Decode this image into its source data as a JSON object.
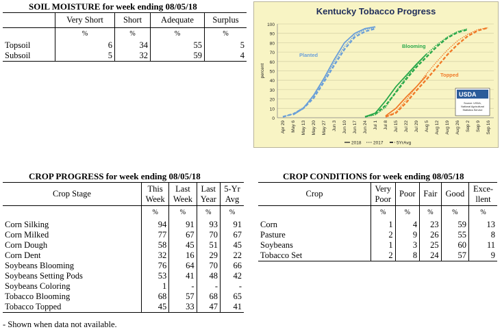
{
  "soil": {
    "title": "SOIL MOISTURE for week ending 08/05/18",
    "columns": [
      "Very Short",
      "Short",
      "Adequate",
      "Surplus"
    ],
    "pct": "%",
    "rows": [
      {
        "label": "Topsoil",
        "values": [
          "6",
          "34",
          "55",
          "5"
        ]
      },
      {
        "label": "Subsoil",
        "values": [
          "5",
          "32",
          "59",
          "4"
        ]
      }
    ]
  },
  "progress": {
    "title": "CROP PROGRESS for week ending 08/05/18",
    "stage_header": "Crop Stage",
    "col_headers": [
      [
        "This",
        "Week"
      ],
      [
        "Last",
        "Week"
      ],
      [
        "Last",
        "Year"
      ],
      [
        "5-Yr",
        "Avg"
      ]
    ],
    "pct": "%",
    "rows": [
      {
        "label": "Corn Silking",
        "values": [
          "94",
          "91",
          "93",
          "91"
        ]
      },
      {
        "label": "Corn Milked",
        "values": [
          "77",
          "67",
          "70",
          "67"
        ]
      },
      {
        "label": "Corn Dough",
        "values": [
          "58",
          "45",
          "51",
          "45"
        ]
      },
      {
        "label": "Corn Dent",
        "values": [
          "32",
          "16",
          "29",
          "22"
        ]
      },
      {
        "label": "Soybeans Blooming",
        "values": [
          "76",
          "64",
          "70",
          "66"
        ]
      },
      {
        "label": "Soybeans Setting Pods",
        "values": [
          "53",
          "41",
          "48",
          "42"
        ]
      },
      {
        "label": "Soybeans Coloring",
        "values": [
          "1",
          "-",
          "-",
          "-"
        ]
      },
      {
        "label": "Tobacco Blooming",
        "values": [
          "68",
          "57",
          "68",
          "65"
        ]
      },
      {
        "label": "Tobacco Topped",
        "values": [
          "45",
          "33",
          "47",
          "41"
        ]
      }
    ],
    "footnote": "- Shown when data not available."
  },
  "conditions": {
    "title": "CROP CONDITIONS for week ending 08/05/18",
    "crop_header": "Crop",
    "col_headers": [
      [
        "Very",
        "Poor"
      ],
      [
        "Poor"
      ],
      [
        "Fair"
      ],
      [
        "Good"
      ],
      [
        "Exce-",
        "llent"
      ]
    ],
    "pct": "%",
    "rows": [
      {
        "label": "Corn",
        "values": [
          "1",
          "4",
          "23",
          "59",
          "13"
        ]
      },
      {
        "label": "Pasture",
        "values": [
          "2",
          "9",
          "26",
          "55",
          "8"
        ]
      },
      {
        "label": "Soybeans",
        "values": [
          "1",
          "3",
          "25",
          "60",
          "11"
        ]
      },
      {
        "label": "Tobacco Set",
        "values": [
          "2",
          "8",
          "24",
          "57",
          "9"
        ]
      }
    ]
  },
  "chart_data": {
    "type": "line",
    "title": "Kentucky Tobacco Progress",
    "ylabel": "percent",
    "xlabel": "",
    "ylim": [
      0,
      100
    ],
    "yticks": [
      0,
      10,
      20,
      30,
      40,
      50,
      60,
      70,
      80,
      90,
      100
    ],
    "x_tick_labels": [
      "Apr 29",
      "May 6",
      "May 13",
      "May 20",
      "May 27",
      "Jun 3",
      "Jun 10",
      "Jun 17",
      "Jun 24",
      "Jul 1",
      "Jul 8",
      "Jul 15",
      "Jul 22",
      "Jul 29",
      "Aug 5",
      "Aug 12",
      "Aug 19",
      "Aug 26",
      "Sep 2",
      "Sep 9",
      "Sep 16"
    ],
    "grid": true,
    "legend_position": "bottom",
    "legend": [
      "2018",
      "2017",
      "5YrAvg"
    ],
    "annotations": [
      {
        "text": "Planted",
        "color": "#6a9fd8"
      },
      {
        "text": "Blooming",
        "color": "#2aa84a"
      },
      {
        "text": "Topped",
        "color": "#f07a28"
      }
    ],
    "logo": {
      "text": "USDA",
      "source": [
        "Source: USDA,",
        "National Agricultural",
        "Statistics Service"
      ]
    },
    "groups": [
      {
        "name": "Planted",
        "color": "#6a9fd8",
        "series": [
          {
            "style": "2018",
            "x": [
              "May 6",
              "May 13",
              "May 20",
              "May 27",
              "Jun 3",
              "Jun 10",
              "Jun 17",
              "Jun 24",
              "Jul 1"
            ],
            "values": [
              3,
              10,
              24,
              42,
              62,
              80,
              90,
              95,
              97
            ]
          },
          {
            "style": "2017",
            "x": [
              "Apr 29",
              "May 6",
              "May 13",
              "May 20",
              "May 27",
              "Jun 3",
              "Jun 10",
              "Jun 17",
              "Jun 24",
              "Jul 1"
            ],
            "values": [
              1,
              4,
              11,
              23,
              40,
              59,
              76,
              88,
              94,
              96
            ]
          },
          {
            "style": "5YrAvg",
            "x": [
              "Apr 29",
              "May 6",
              "May 13",
              "May 20",
              "May 27",
              "Jun 3",
              "Jun 10",
              "Jun 17",
              "Jun 24",
              "Jul 1"
            ],
            "values": [
              1,
              4,
              10,
              21,
              38,
              56,
              73,
              86,
              92,
              95
            ]
          }
        ]
      },
      {
        "name": "Blooming",
        "color": "#2aa84a",
        "series": [
          {
            "style": "2018",
            "x": [
              "Jun 24",
              "Jul 1",
              "Jul 8",
              "Jul 15",
              "Jul 22",
              "Jul 29",
              "Aug 5"
            ],
            "values": [
              1,
              5,
              18,
              33,
              45,
              57,
              68
            ]
          },
          {
            "style": "2017",
            "x": [
              "Jun 24",
              "Jul 1",
              "Jul 8",
              "Jul 15",
              "Jul 22",
              "Jul 29",
              "Aug 5",
              "Aug 12",
              "Aug 19",
              "Aug 26",
              "Sep 2"
            ],
            "values": [
              1,
              3,
              11,
              28,
              43,
              56,
              68,
              78,
              86,
              92,
              95
            ]
          },
          {
            "style": "5YrAvg",
            "x": [
              "Jun 24",
              "Jul 1",
              "Jul 8",
              "Jul 15",
              "Jul 22",
              "Jul 29",
              "Aug 5",
              "Aug 12",
              "Aug 19",
              "Aug 26",
              "Sep 2"
            ],
            "values": [
              1,
              4,
              13,
              27,
              41,
              54,
              65,
              76,
              85,
              91,
              94
            ]
          }
        ]
      },
      {
        "name": "Topped",
        "color": "#f07a28",
        "series": [
          {
            "style": "2018",
            "x": [
              "Jul 8",
              "Jul 15",
              "Jul 22",
              "Jul 29",
              "Aug 5"
            ],
            "values": [
              2,
              10,
              22,
              33,
              45
            ]
          },
          {
            "style": "2017",
            "x": [
              "Jul 8",
              "Jul 15",
              "Jul 22",
              "Jul 29",
              "Aug 5",
              "Aug 12",
              "Aug 19",
              "Aug 26",
              "Sep 2",
              "Sep 9",
              "Sep 16"
            ],
            "values": [
              1,
              6,
              19,
              33,
              47,
              60,
              72,
              82,
              89,
              94,
              96
            ]
          },
          {
            "style": "5YrAvg",
            "x": [
              "Jul 8",
              "Jul 15",
              "Jul 22",
              "Jul 29",
              "Aug 5",
              "Aug 12",
              "Aug 19",
              "Aug 26",
              "Sep 2",
              "Sep 9",
              "Sep 16"
            ],
            "values": [
              1,
              5,
              16,
              29,
              41,
              54,
              67,
              78,
              87,
              93,
              96
            ]
          }
        ]
      }
    ]
  }
}
